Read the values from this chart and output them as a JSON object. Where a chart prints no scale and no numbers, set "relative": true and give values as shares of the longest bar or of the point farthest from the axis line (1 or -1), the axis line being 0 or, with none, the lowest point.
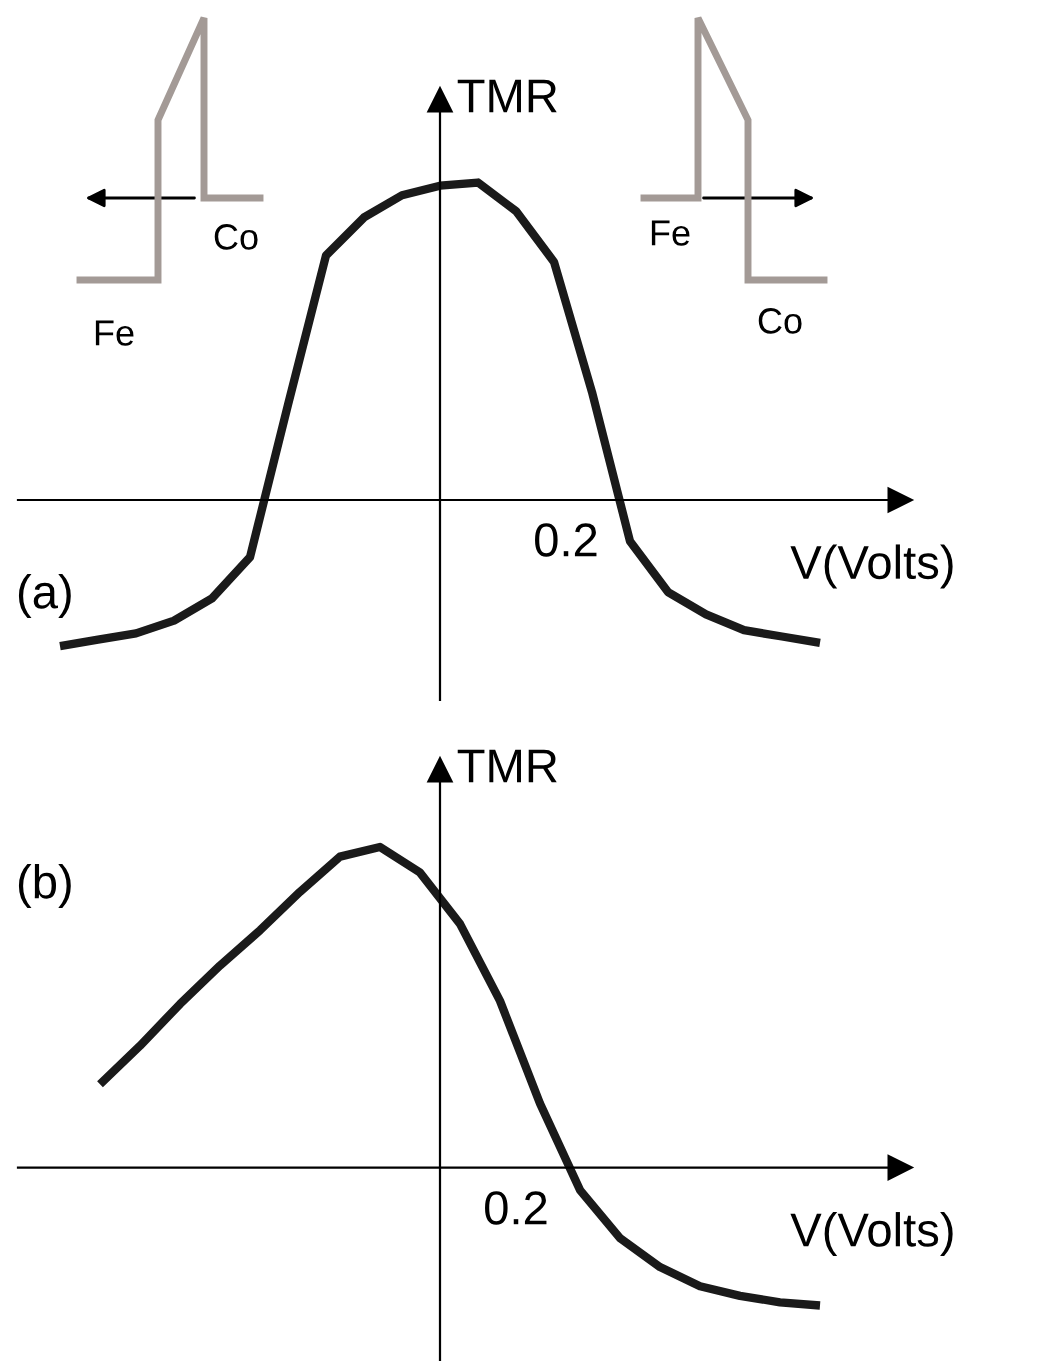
{
  "chart_data": [
    {
      "type": "line",
      "title": "(a)",
      "xlabel": "V(Volts)",
      "ylabel": "TMR",
      "relative": true,
      "categories": [
        null,
        null,
        null,
        null,
        null,
        null,
        null,
        null,
        null,
        null,
        null,
        null,
        null,
        null,
        null,
        null,
        null,
        null,
        null,
        null,
        null
      ],
      "series": [
        {
          "color": "#1a1a1a",
          "values": [
            -0.46,
            -0.44,
            -0.42,
            -0.38,
            -0.31,
            -0.18,
            0.3,
            0.77,
            0.89,
            0.96,
            0.99,
            1,
            0.91,
            0.75,
            0.34,
            -0.13,
            -0.29,
            -0.36,
            -0.41,
            -0.43,
            -0.45
          ]
        }
      ],
      "annotations": [
        "0.2",
        "Co",
        "Fe",
        "Fe",
        "Co"
      ]
    },
    {
      "type": "line",
      "title": "(b)",
      "xlabel": "V(Volts)",
      "ylabel": "TMR",
      "relative": true,
      "categories": [
        null,
        null,
        null,
        null,
        null,
        null,
        null,
        null,
        null,
        null,
        null,
        null,
        null,
        null,
        null,
        null,
        null,
        null,
        null
      ],
      "series": [
        {
          "color": "#1a1a1a",
          "values": [
            0.26,
            0.38,
            0.51,
            0.63,
            0.74,
            0.86,
            0.97,
            1.0,
            0.92,
            0.76,
            0.52,
            0.2,
            -0.07,
            -0.22,
            -0.31,
            -0.37,
            -0.4,
            -0.42,
            -0.43
          ]
        }
      ],
      "annotations": [
        "0.2"
      ]
    }
  ]
}
